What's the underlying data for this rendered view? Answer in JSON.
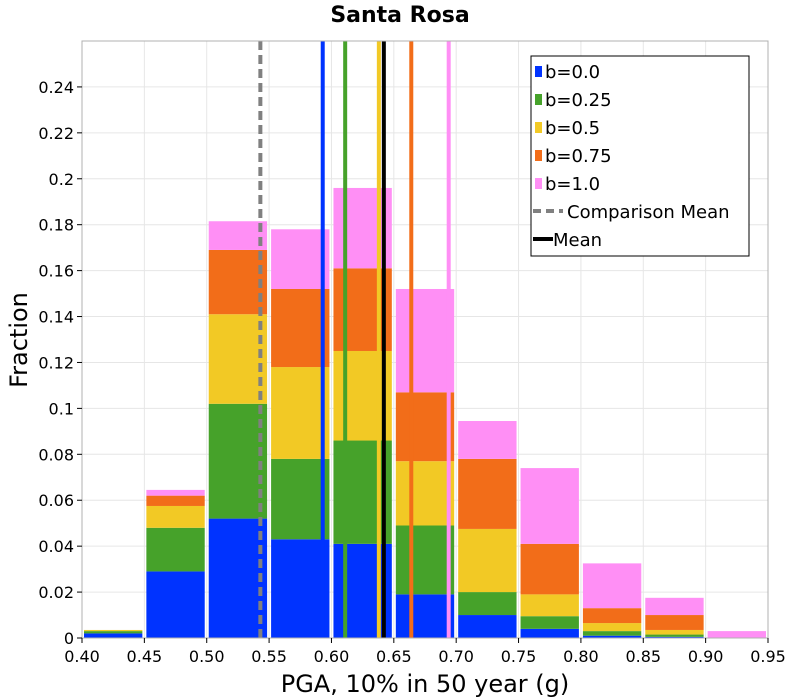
{
  "chart_data": {
    "type": "bar",
    "stacked": true,
    "title": "Santa Rosa",
    "xlabel": "PGA, 10% in 50 year (g)",
    "ylabel": "Fraction",
    "xlim": [
      0.4,
      0.95
    ],
    "ylim": [
      0,
      0.26
    ],
    "x_ticks": [
      "0.40",
      "0.45",
      "0.50",
      "0.55",
      "0.60",
      "0.65",
      "0.70",
      "0.75",
      "0.80",
      "0.85",
      "0.90",
      "0.95"
    ],
    "y_ticks": [
      "0",
      "0.02",
      "0.04",
      "0.06",
      "0.08",
      "0.1",
      "0.12",
      "0.14",
      "0.16",
      "0.18",
      "0.2",
      "0.22",
      "0.24"
    ],
    "grid": true,
    "legend_position": "top-right",
    "bin_width": 0.05,
    "bin_starts": [
      0.4,
      0.45,
      0.5,
      0.55,
      0.6,
      0.65,
      0.7,
      0.75,
      0.8,
      0.85,
      0.9
    ],
    "series": [
      {
        "name": "b=0.0",
        "color": "#0033ff",
        "values": [
          0.002,
          0.029,
          0.052,
          0.043,
          0.041,
          0.019,
          0.01,
          0.004,
          0.001,
          0.0005,
          0.0
        ]
      },
      {
        "name": "b=0.25",
        "color": "#46a22a",
        "values": [
          0.001,
          0.019,
          0.05,
          0.035,
          0.045,
          0.03,
          0.01,
          0.0055,
          0.002,
          0.001,
          0.0
        ]
      },
      {
        "name": "b=0.5",
        "color": "#f2c925",
        "values": [
          0.0005,
          0.0095,
          0.039,
          0.04,
          0.039,
          0.028,
          0.0275,
          0.0095,
          0.0035,
          0.002,
          0.0
        ]
      },
      {
        "name": "b=0.75",
        "color": "#f26d19",
        "values": [
          0.0,
          0.0045,
          0.028,
          0.034,
          0.036,
          0.03,
          0.0305,
          0.022,
          0.0065,
          0.0065,
          0.0
        ]
      },
      {
        "name": "b=1.0",
        "color": "#ff8ff5",
        "values": [
          0.0,
          0.0025,
          0.0125,
          0.026,
          0.035,
          0.045,
          0.0165,
          0.033,
          0.0195,
          0.0075,
          0.003
        ]
      }
    ],
    "vlines": [
      {
        "label": "b=0.0",
        "x": 0.593,
        "color": "#0033ff",
        "style": "solid"
      },
      {
        "label": "b=0.25",
        "x": 0.611,
        "color": "#46a22a",
        "style": "solid"
      },
      {
        "label": "b=0.5",
        "x": 0.638,
        "color": "#f2c925",
        "style": "solid"
      },
      {
        "label": "b=0.75",
        "x": 0.664,
        "color": "#f26d19",
        "style": "solid"
      },
      {
        "label": "b=1.0",
        "x": 0.694,
        "color": "#ff8ff5",
        "style": "solid"
      },
      {
        "label": "Comparison Mean",
        "x": 0.543,
        "color": "#808080",
        "style": "dashed"
      },
      {
        "label": "Mean",
        "x": 0.642,
        "color": "#000000",
        "style": "solid"
      }
    ],
    "legend": [
      {
        "label": "b=0.0",
        "color": "#0033ff",
        "marker": "square"
      },
      {
        "label": "b=0.25",
        "color": "#46a22a",
        "marker": "square"
      },
      {
        "label": "b=0.5",
        "color": "#f2c925",
        "marker": "square"
      },
      {
        "label": "b=0.75",
        "color": "#f26d19",
        "marker": "square"
      },
      {
        "label": "b=1.0",
        "color": "#ff8ff5",
        "marker": "square"
      },
      {
        "label": "Comparison Mean",
        "color": "#808080",
        "marker": "dash"
      },
      {
        "label": "Mean",
        "color": "#000000",
        "marker": "line"
      }
    ]
  }
}
